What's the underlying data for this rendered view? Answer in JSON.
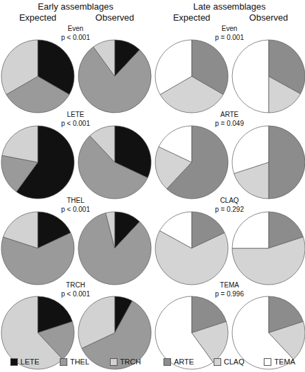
{
  "chart_data": {
    "type": "pie",
    "panels": [
      {
        "title": "Early assemblages",
        "categories": [
          "LETE",
          "THEL",
          "TRCH"
        ],
        "colors": [
          "#111111",
          "#9a9a9a",
          "#d2d2d2"
        ],
        "rows": [
          {
            "title": "Even",
            "subtitle": "p < 0.001",
            "series": [
              {
                "name": "Expected",
                "values": [
                  33.3,
                  33.3,
                  33.3
                ]
              },
              {
                "name": "Observed",
                "values": [
                  12,
                  78,
                  10
                ]
              }
            ]
          },
          {
            "title": "LETE",
            "subtitle": "p < 0.001",
            "series": [
              {
                "name": "Expected",
                "values": [
                  60,
                  18,
                  22
                ]
              },
              {
                "name": "Observed",
                "values": [
                  32,
                  56,
                  12
                ]
              }
            ]
          },
          {
            "title": "THEL",
            "subtitle": "p < 0.001",
            "series": [
              {
                "name": "Expected",
                "values": [
                  18,
                  62,
                  20
                ]
              },
              {
                "name": "Observed",
                "values": [
                  12,
                  84,
                  4
                ]
              }
            ]
          },
          {
            "title": "TRCH",
            "subtitle": "p < 0.001",
            "series": [
              {
                "name": "Expected",
                "values": [
                  20,
                  18,
                  62
                ]
              },
              {
                "name": "Observed",
                "values": [
                  8,
                  60,
                  32
                ]
              }
            ]
          }
        ]
      },
      {
        "title": "Late assemblages",
        "categories": [
          "ARTE",
          "CLAQ",
          "TEMA"
        ],
        "colors": [
          "#8c8c8c",
          "#d4d4d4",
          "#ffffff"
        ],
        "rows": [
          {
            "title": "Even",
            "subtitle": "p = 0.001",
            "series": [
              {
                "name": "Expected",
                "values": [
                  33.3,
                  33.3,
                  33.3
                ]
              },
              {
                "name": "Observed",
                "values": [
                  33,
                  17,
                  50
                ]
              }
            ]
          },
          {
            "title": "ARTE",
            "subtitle": "p = 0.049",
            "series": [
              {
                "name": "Expected",
                "values": [
                  62,
                  20,
                  18
                ]
              },
              {
                "name": "Observed",
                "values": [
                  50,
                  20,
                  30
                ]
              }
            ]
          },
          {
            "title": "CLAQ",
            "subtitle": "p = 0.292",
            "series": [
              {
                "name": "Expected",
                "values": [
                  18,
                  65,
                  17
                ]
              },
              {
                "name": "Observed",
                "values": [
                  20,
                  55,
                  25
                ]
              }
            ]
          },
          {
            "title": "TEMA",
            "subtitle": "p = 0.996",
            "series": [
              {
                "name": "Expected",
                "values": [
                  20,
                  20,
                  60
                ]
              },
              {
                "name": "Observed",
                "values": [
                  20,
                  18,
                  62
                ]
              }
            ]
          }
        ]
      }
    ]
  }
}
